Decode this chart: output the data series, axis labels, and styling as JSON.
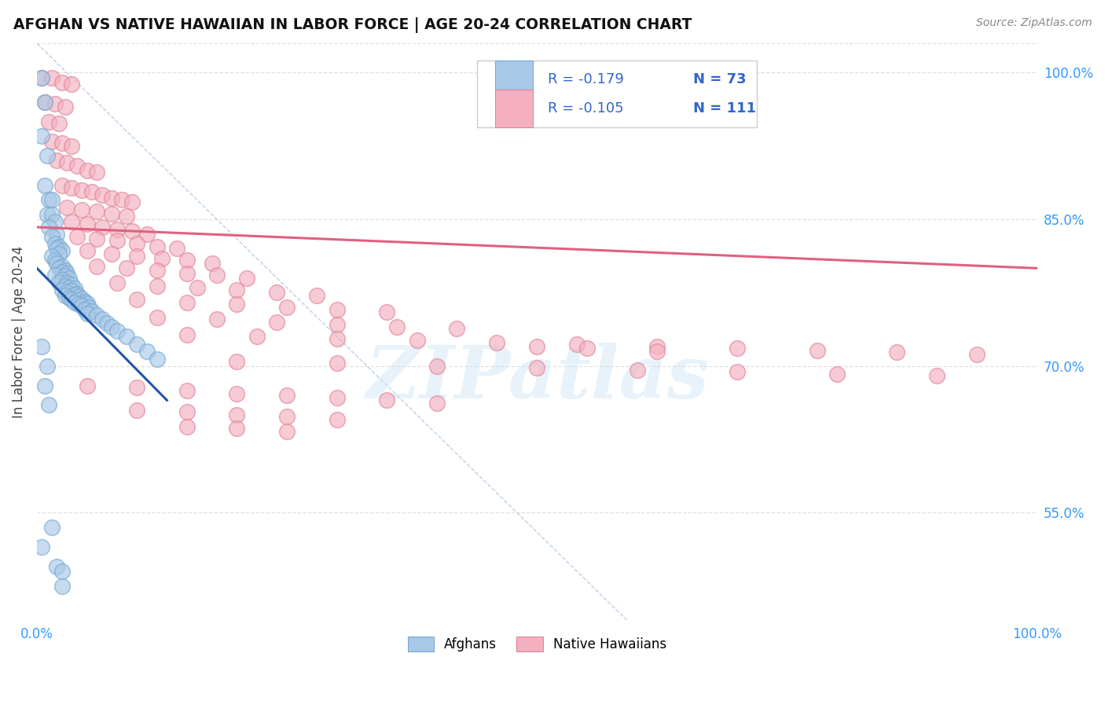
{
  "title": "AFGHAN VS NATIVE HAWAIIAN IN LABOR FORCE | AGE 20-24 CORRELATION CHART",
  "source": "Source: ZipAtlas.com",
  "ylabel": "In Labor Force | Age 20-24",
  "xlim": [
    0.0,
    1.0
  ],
  "ylim": [
    0.44,
    1.03
  ],
  "x_tick_labels": [
    "0.0%",
    "",
    "",
    "",
    "",
    "100.0%"
  ],
  "x_tick_vals": [
    0.0,
    0.2,
    0.4,
    0.6,
    0.8,
    1.0
  ],
  "y_tick_labels_right": [
    "55.0%",
    "70.0%",
    "85.0%",
    "100.0%"
  ],
  "y_tick_vals_right": [
    0.55,
    0.7,
    0.85,
    1.0
  ],
  "afghan_color": "#a8c8e8",
  "afghan_edge_color": "#7aaad0",
  "native_hawaiian_color": "#f4b0c0",
  "native_hawaiian_edge_color": "#e08898",
  "afghan_line_color": "#2255aa",
  "native_hawaiian_line_color": "#e06080",
  "diagonal_color": "#b0c8e0",
  "legend_R_color": "#3355cc",
  "legend_N_color": "#2266cc",
  "legend_R_afghan": "-0.179",
  "legend_N_afghan": "73",
  "legend_R_native": "-0.105",
  "legend_N_native": "111",
  "background_color": "#ffffff",
  "grid_color": "#e0e0e0",
  "watermark": "ZIPatlas",
  "afghan_trendline": [
    [
      0.0,
      0.8
    ],
    [
      0.13,
      0.665
    ]
  ],
  "native_trendline": [
    [
      0.0,
      0.842
    ],
    [
      1.0,
      0.8
    ]
  ],
  "diagonal_line": [
    [
      0.0,
      1.03
    ],
    [
      0.59,
      0.44
    ]
  ],
  "afghan_points": [
    [
      0.005,
      0.995
    ],
    [
      0.008,
      0.97
    ],
    [
      0.005,
      0.935
    ],
    [
      0.01,
      0.915
    ],
    [
      0.008,
      0.885
    ],
    [
      0.012,
      0.87
    ],
    [
      0.015,
      0.87
    ],
    [
      0.01,
      0.855
    ],
    [
      0.015,
      0.855
    ],
    [
      0.018,
      0.848
    ],
    [
      0.012,
      0.842
    ],
    [
      0.02,
      0.835
    ],
    [
      0.015,
      0.832
    ],
    [
      0.018,
      0.825
    ],
    [
      0.022,
      0.822
    ],
    [
      0.02,
      0.82
    ],
    [
      0.025,
      0.818
    ],
    [
      0.022,
      0.815
    ],
    [
      0.015,
      0.812
    ],
    [
      0.018,
      0.808
    ],
    [
      0.02,
      0.805
    ],
    [
      0.025,
      0.802
    ],
    [
      0.022,
      0.8
    ],
    [
      0.028,
      0.798
    ],
    [
      0.025,
      0.796
    ],
    [
      0.03,
      0.795
    ],
    [
      0.018,
      0.793
    ],
    [
      0.028,
      0.792
    ],
    [
      0.032,
      0.79
    ],
    [
      0.025,
      0.788
    ],
    [
      0.022,
      0.786
    ],
    [
      0.03,
      0.785
    ],
    [
      0.035,
      0.783
    ],
    [
      0.028,
      0.782
    ],
    [
      0.032,
      0.78
    ],
    [
      0.038,
      0.779
    ],
    [
      0.025,
      0.778
    ],
    [
      0.035,
      0.777
    ],
    [
      0.03,
      0.775
    ],
    [
      0.04,
      0.774
    ],
    [
      0.038,
      0.773
    ],
    [
      0.028,
      0.772
    ],
    [
      0.042,
      0.771
    ],
    [
      0.032,
      0.77
    ],
    [
      0.045,
      0.769
    ],
    [
      0.035,
      0.768
    ],
    [
      0.04,
      0.767
    ],
    [
      0.048,
      0.766
    ],
    [
      0.038,
      0.765
    ],
    [
      0.05,
      0.764
    ],
    [
      0.042,
      0.763
    ],
    [
      0.045,
      0.762
    ],
    [
      0.052,
      0.76
    ],
    [
      0.048,
      0.758
    ],
    [
      0.055,
      0.756
    ],
    [
      0.05,
      0.754
    ],
    [
      0.06,
      0.752
    ],
    [
      0.065,
      0.748
    ],
    [
      0.07,
      0.744
    ],
    [
      0.075,
      0.74
    ],
    [
      0.08,
      0.736
    ],
    [
      0.09,
      0.73
    ],
    [
      0.1,
      0.722
    ],
    [
      0.11,
      0.715
    ],
    [
      0.12,
      0.707
    ],
    [
      0.005,
      0.72
    ],
    [
      0.01,
      0.7
    ],
    [
      0.008,
      0.68
    ],
    [
      0.012,
      0.66
    ],
    [
      0.015,
      0.535
    ],
    [
      0.005,
      0.515
    ],
    [
      0.02,
      0.495
    ],
    [
      0.025,
      0.49
    ],
    [
      0.025,
      0.475
    ]
  ],
  "native_points": [
    [
      0.005,
      0.995
    ],
    [
      0.015,
      0.995
    ],
    [
      0.025,
      0.99
    ],
    [
      0.035,
      0.988
    ],
    [
      0.008,
      0.97
    ],
    [
      0.018,
      0.968
    ],
    [
      0.028,
      0.965
    ],
    [
      0.012,
      0.95
    ],
    [
      0.022,
      0.948
    ],
    [
      0.015,
      0.93
    ],
    [
      0.025,
      0.928
    ],
    [
      0.035,
      0.925
    ],
    [
      0.02,
      0.91
    ],
    [
      0.03,
      0.908
    ],
    [
      0.04,
      0.905
    ],
    [
      0.05,
      0.9
    ],
    [
      0.06,
      0.898
    ],
    [
      0.025,
      0.885
    ],
    [
      0.035,
      0.882
    ],
    [
      0.045,
      0.88
    ],
    [
      0.055,
      0.878
    ],
    [
      0.065,
      0.875
    ],
    [
      0.075,
      0.872
    ],
    [
      0.085,
      0.87
    ],
    [
      0.095,
      0.868
    ],
    [
      0.03,
      0.862
    ],
    [
      0.045,
      0.86
    ],
    [
      0.06,
      0.858
    ],
    [
      0.075,
      0.856
    ],
    [
      0.09,
      0.853
    ],
    [
      0.035,
      0.848
    ],
    [
      0.05,
      0.845
    ],
    [
      0.065,
      0.842
    ],
    [
      0.08,
      0.84
    ],
    [
      0.095,
      0.838
    ],
    [
      0.11,
      0.835
    ],
    [
      0.04,
      0.832
    ],
    [
      0.06,
      0.83
    ],
    [
      0.08,
      0.828
    ],
    [
      0.1,
      0.825
    ],
    [
      0.12,
      0.822
    ],
    [
      0.14,
      0.82
    ],
    [
      0.05,
      0.818
    ],
    [
      0.075,
      0.815
    ],
    [
      0.1,
      0.812
    ],
    [
      0.125,
      0.81
    ],
    [
      0.15,
      0.808
    ],
    [
      0.175,
      0.805
    ],
    [
      0.06,
      0.802
    ],
    [
      0.09,
      0.8
    ],
    [
      0.12,
      0.798
    ],
    [
      0.15,
      0.795
    ],
    [
      0.18,
      0.793
    ],
    [
      0.21,
      0.79
    ],
    [
      0.08,
      0.785
    ],
    [
      0.12,
      0.782
    ],
    [
      0.16,
      0.78
    ],
    [
      0.2,
      0.778
    ],
    [
      0.24,
      0.775
    ],
    [
      0.28,
      0.772
    ],
    [
      0.1,
      0.768
    ],
    [
      0.15,
      0.765
    ],
    [
      0.2,
      0.763
    ],
    [
      0.25,
      0.76
    ],
    [
      0.3,
      0.758
    ],
    [
      0.35,
      0.755
    ],
    [
      0.12,
      0.75
    ],
    [
      0.18,
      0.748
    ],
    [
      0.24,
      0.745
    ],
    [
      0.3,
      0.742
    ],
    [
      0.36,
      0.74
    ],
    [
      0.42,
      0.738
    ],
    [
      0.15,
      0.732
    ],
    [
      0.22,
      0.73
    ],
    [
      0.3,
      0.728
    ],
    [
      0.38,
      0.726
    ],
    [
      0.46,
      0.724
    ],
    [
      0.54,
      0.722
    ],
    [
      0.62,
      0.72
    ],
    [
      0.7,
      0.718
    ],
    [
      0.78,
      0.716
    ],
    [
      0.86,
      0.714
    ],
    [
      0.94,
      0.712
    ],
    [
      0.2,
      0.705
    ],
    [
      0.3,
      0.703
    ],
    [
      0.4,
      0.7
    ],
    [
      0.5,
      0.698
    ],
    [
      0.6,
      0.696
    ],
    [
      0.7,
      0.694
    ],
    [
      0.8,
      0.692
    ],
    [
      0.9,
      0.69
    ],
    [
      0.05,
      0.68
    ],
    [
      0.1,
      0.678
    ],
    [
      0.15,
      0.675
    ],
    [
      0.2,
      0.672
    ],
    [
      0.25,
      0.67
    ],
    [
      0.3,
      0.668
    ],
    [
      0.35,
      0.665
    ],
    [
      0.4,
      0.662
    ],
    [
      0.1,
      0.655
    ],
    [
      0.15,
      0.653
    ],
    [
      0.2,
      0.65
    ],
    [
      0.25,
      0.648
    ],
    [
      0.3,
      0.645
    ],
    [
      0.15,
      0.638
    ],
    [
      0.2,
      0.636
    ],
    [
      0.25,
      0.633
    ],
    [
      0.5,
      0.72
    ],
    [
      0.55,
      0.718
    ],
    [
      0.62,
      0.715
    ]
  ]
}
